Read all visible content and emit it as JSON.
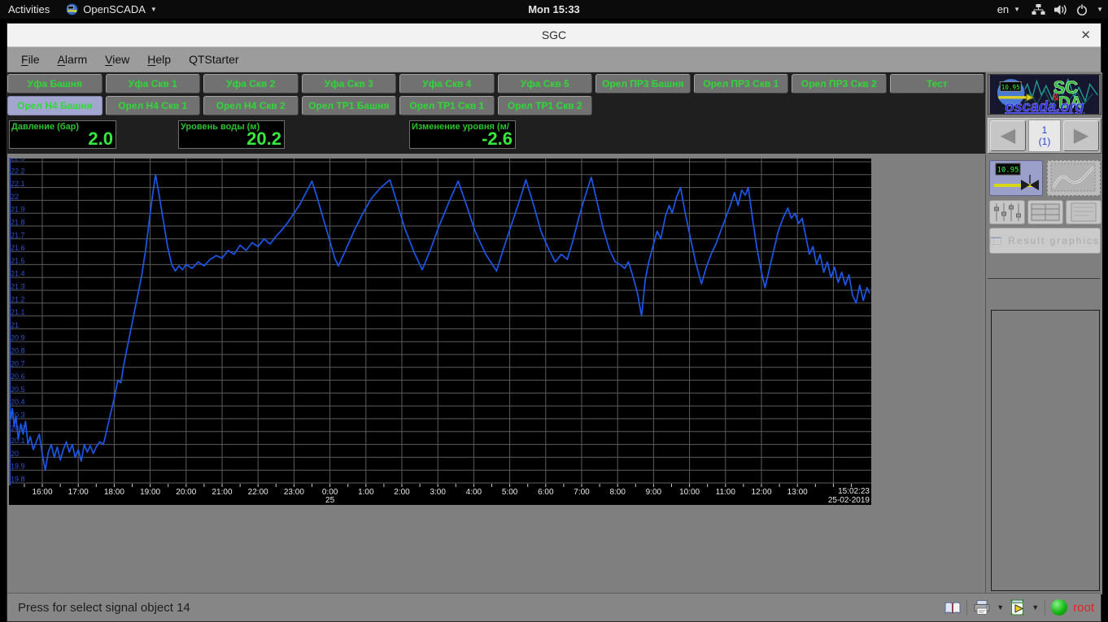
{
  "top_bar": {
    "activities": "Activities",
    "app_name": "OpenSCADA",
    "clock": "Mon 15:33",
    "language": "en"
  },
  "window_title": "SGC",
  "window_close_glyph": "✕",
  "menu": {
    "items": [
      {
        "label": "File",
        "accel": true
      },
      {
        "label": "Alarm",
        "accel": true
      },
      {
        "label": "View",
        "accel": true
      },
      {
        "label": "Help",
        "accel": true
      },
      {
        "label": "QTStarter",
        "accel": false
      }
    ]
  },
  "signal_tabs": {
    "row1": [
      "Уфа Башня",
      "Уфа Скв 1",
      "Уфа Скв 2",
      "Уфа Скв 3",
      "Уфа Скв 4",
      "Уфа Скв 5",
      "Орел ПР3 Башня",
      "Орел ПР3 Скв 1",
      "Орел ПР3 Скв 2",
      "Тест"
    ],
    "row2": [
      "Орел Н4 Башня",
      "Орел Н4 Скв 1",
      "Орел Н4 Скв 2",
      "Орел ТР1 Башня",
      "Орел ТР1 Скв 1",
      "Орел ТР1 Скв 2"
    ],
    "selected": "Орел Н4 Башня"
  },
  "value_displays": [
    {
      "label": "Давление (бар)",
      "value": "2.0"
    },
    {
      "label": "Уровень воды (м)",
      "value": "20.2"
    },
    {
      "label": "Изменение уровня (м/",
      "value": "-2.6"
    }
  ],
  "chart_data": {
    "type": "line",
    "title": "",
    "xlabel": "",
    "ylabel": "",
    "ylim": [
      19.8,
      22.3
    ],
    "y_tick_step": 0.1,
    "y_ticks": [
      "22.3",
      "22.2",
      "22.1",
      "22",
      "21.9",
      "21.8",
      "21.7",
      "21.6",
      "21.5",
      "21.4",
      "21.3",
      "21.2",
      "21.1",
      "21",
      "20.9",
      "20.8",
      "20.7",
      "20.6",
      "20.5",
      "20.4",
      "20.3",
      "20.2",
      "20.1",
      "20",
      "19.9",
      "19.8"
    ],
    "x_ticks": [
      "16:00",
      "17:00",
      "18:00",
      "19:00",
      "20:00",
      "21:00",
      "22:00",
      "23:00",
      "0:00",
      "1:00",
      "2:00",
      "3:00",
      "4:00",
      "5:00",
      "6:00",
      "7:00",
      "8:00",
      "9:00",
      "10:00",
      "11:00",
      "12:00",
      "13:00"
    ],
    "x_grid_extra": [
      "14:00"
    ],
    "x_day_change": {
      "tick": "0:00",
      "label": "25"
    },
    "x_end_label": [
      "15:02:23",
      "25-02-2019"
    ],
    "time_window_hours": 24,
    "grid": true,
    "bg": "#000000",
    "grid_color": "#5c5c5c",
    "axis_color": "#2b52cf",
    "tick_text_color": "#e8e8e8",
    "series": [
      {
        "name": "Уровень воды (м)",
        "color": "#1c57e8",
        "points": [
          [
            "15:04",
            20.44
          ],
          [
            "15:07",
            20.3
          ],
          [
            "15:10",
            20.38
          ],
          [
            "15:13",
            20.24
          ],
          [
            "15:16",
            20.32
          ],
          [
            "15:20",
            20.14
          ],
          [
            "15:24",
            20.26
          ],
          [
            "15:28",
            20.18
          ],
          [
            "15:32",
            20.28
          ],
          [
            "15:36",
            20.1
          ],
          [
            "15:40",
            20.16
          ],
          [
            "15:45",
            20.06
          ],
          [
            "15:50",
            20.12
          ],
          [
            "15:55",
            20.18
          ],
          [
            "16:00",
            20.02
          ],
          [
            "16:05",
            19.9
          ],
          [
            "16:10",
            20.04
          ],
          [
            "16:15",
            20.1
          ],
          [
            "16:20",
            20.0
          ],
          [
            "16:25",
            20.08
          ],
          [
            "16:30",
            19.98
          ],
          [
            "16:35",
            20.06
          ],
          [
            "16:40",
            20.12
          ],
          [
            "16:45",
            20.04
          ],
          [
            "16:50",
            20.1
          ],
          [
            "16:55",
            20.0
          ],
          [
            "17:00",
            20.06
          ],
          [
            "17:05",
            19.97
          ],
          [
            "17:10",
            20.1
          ],
          [
            "17:15",
            20.04
          ],
          [
            "17:20",
            20.09
          ],
          [
            "17:25",
            20.03
          ],
          [
            "17:30",
            20.08
          ],
          [
            "17:36",
            20.12
          ],
          [
            "17:42",
            20.1
          ],
          [
            "17:48",
            20.22
          ],
          [
            "17:54",
            20.34
          ],
          [
            "18:00",
            20.46
          ],
          [
            "18:06",
            20.6
          ],
          [
            "18:11",
            20.58
          ],
          [
            "18:16",
            20.72
          ],
          [
            "18:22",
            20.86
          ],
          [
            "18:28",
            21.0
          ],
          [
            "18:34",
            21.14
          ],
          [
            "18:40",
            21.28
          ],
          [
            "18:46",
            21.42
          ],
          [
            "18:52",
            21.6
          ],
          [
            "18:58",
            21.82
          ],
          [
            "19:04",
            22.04
          ],
          [
            "19:09",
            22.2
          ],
          [
            "19:15",
            22.04
          ],
          [
            "19:22",
            21.84
          ],
          [
            "19:29",
            21.64
          ],
          [
            "19:36",
            21.5
          ],
          [
            "19:42",
            21.45
          ],
          [
            "19:48",
            21.49
          ],
          [
            "19:54",
            21.46
          ],
          [
            "20:00",
            21.5
          ],
          [
            "20:10",
            21.47
          ],
          [
            "20:20",
            21.52
          ],
          [
            "20:30",
            21.49
          ],
          [
            "20:40",
            21.54
          ],
          [
            "20:50",
            21.57
          ],
          [
            "21:00",
            21.55
          ],
          [
            "21:10",
            21.61
          ],
          [
            "21:20",
            21.58
          ],
          [
            "21:30",
            21.65
          ],
          [
            "21:40",
            21.61
          ],
          [
            "21:50",
            21.67
          ],
          [
            "22:00",
            21.64
          ],
          [
            "22:10",
            21.7
          ],
          [
            "22:20",
            21.66
          ],
          [
            "22:30",
            21.72
          ],
          [
            "22:40",
            21.77
          ],
          [
            "22:50",
            21.83
          ],
          [
            "23:00",
            21.9
          ],
          [
            "23:10",
            21.97
          ],
          [
            "23:20",
            22.06
          ],
          [
            "23:30",
            22.15
          ],
          [
            "23:40",
            22.0
          ],
          [
            "23:50",
            21.84
          ],
          [
            "0:00",
            21.68
          ],
          [
            "0:08",
            21.55
          ],
          [
            "0:14",
            21.49
          ],
          [
            "0:25",
            21.6
          ],
          [
            "0:40",
            21.76
          ],
          [
            "0:55",
            21.9
          ],
          [
            "1:10",
            22.02
          ],
          [
            "1:25",
            22.1
          ],
          [
            "1:40",
            22.16
          ],
          [
            "1:52",
            21.98
          ],
          [
            "2:05",
            21.78
          ],
          [
            "2:20",
            21.6
          ],
          [
            "2:34",
            21.46
          ],
          [
            "2:48",
            21.62
          ],
          [
            "3:02",
            21.8
          ],
          [
            "3:18",
            21.98
          ],
          [
            "3:34",
            22.15
          ],
          [
            "3:48",
            21.96
          ],
          [
            "4:02",
            21.76
          ],
          [
            "4:20",
            21.58
          ],
          [
            "4:38",
            21.45
          ],
          [
            "4:50",
            21.63
          ],
          [
            "5:02",
            21.8
          ],
          [
            "5:15",
            21.98
          ],
          [
            "5:27",
            22.16
          ],
          [
            "5:40",
            21.96
          ],
          [
            "5:52",
            21.76
          ],
          [
            "6:05",
            21.62
          ],
          [
            "6:16",
            21.52
          ],
          [
            "6:26",
            21.58
          ],
          [
            "6:36",
            21.54
          ],
          [
            "6:45",
            21.68
          ],
          [
            "6:55",
            21.86
          ],
          [
            "7:05",
            22.02
          ],
          [
            "7:16",
            22.18
          ],
          [
            "7:26",
            21.98
          ],
          [
            "7:36",
            21.78
          ],
          [
            "7:46",
            21.62
          ],
          [
            "7:56",
            21.52
          ],
          [
            "8:04",
            21.5
          ],
          [
            "8:12",
            21.47
          ],
          [
            "8:18",
            21.52
          ],
          [
            "8:26",
            21.4
          ],
          [
            "8:33",
            21.28
          ],
          [
            "8:40",
            21.1
          ],
          [
            "8:46",
            21.38
          ],
          [
            "8:52",
            21.52
          ],
          [
            "9:00",
            21.66
          ],
          [
            "9:06",
            21.76
          ],
          [
            "9:12",
            21.7
          ],
          [
            "9:20",
            21.88
          ],
          [
            "9:26",
            21.96
          ],
          [
            "9:31",
            21.9
          ],
          [
            "9:38",
            22.02
          ],
          [
            "9:45",
            22.1
          ],
          [
            "9:52",
            21.92
          ],
          [
            "10:00",
            21.74
          ],
          [
            "10:10",
            21.52
          ],
          [
            "10:20",
            21.35
          ],
          [
            "10:28",
            21.48
          ],
          [
            "10:36",
            21.58
          ],
          [
            "10:44",
            21.66
          ],
          [
            "10:52",
            21.76
          ],
          [
            "11:00",
            21.86
          ],
          [
            "11:08",
            21.96
          ],
          [
            "11:15",
            22.06
          ],
          [
            "11:21",
            21.96
          ],
          [
            "11:27",
            22.08
          ],
          [
            "11:33",
            22.04
          ],
          [
            "11:38",
            22.1
          ],
          [
            "11:45",
            21.86
          ],
          [
            "11:52",
            21.64
          ],
          [
            "12:00",
            21.44
          ],
          [
            "12:06",
            21.32
          ],
          [
            "12:12",
            21.44
          ],
          [
            "12:20",
            21.6
          ],
          [
            "12:28",
            21.76
          ],
          [
            "12:36",
            21.86
          ],
          [
            "12:44",
            21.94
          ],
          [
            "12:50",
            21.86
          ],
          [
            "12:56",
            21.9
          ],
          [
            "13:02",
            21.82
          ],
          [
            "13:08",
            21.86
          ],
          [
            "13:14",
            21.72
          ],
          [
            "13:20",
            21.58
          ],
          [
            "13:26",
            21.64
          ],
          [
            "13:32",
            21.5
          ],
          [
            "13:38",
            21.58
          ],
          [
            "13:44",
            21.44
          ],
          [
            "13:50",
            21.52
          ],
          [
            "13:56",
            21.4
          ],
          [
            "14:02",
            21.48
          ],
          [
            "14:08",
            21.36
          ],
          [
            "14:14",
            21.44
          ],
          [
            "14:20",
            21.34
          ],
          [
            "14:26",
            21.42
          ],
          [
            "14:32",
            21.26
          ],
          [
            "14:38",
            21.2
          ],
          [
            "14:44",
            21.34
          ],
          [
            "14:50",
            21.22
          ],
          [
            "14:56",
            21.32
          ],
          [
            "15:00",
            21.28
          ]
        ]
      }
    ]
  },
  "sidebar": {
    "logo": {
      "sc": "SC",
      "amp": "&",
      "da": "DA",
      "url": "oscada.org",
      "mini_value": "10.95"
    },
    "pager": {
      "current": "1",
      "total": "(1)"
    },
    "widget_buttons": {
      "analog_display_value": "10.95",
      "result_graphics_label": "Result graphics"
    }
  },
  "status_bar": {
    "message": "Press for select signal object 14",
    "user": "root"
  },
  "colors": {
    "accent_green": "#2fd838",
    "value_green": "#37e93d",
    "trend_blue": "#1c57e8",
    "ytick_blue": "#2b52cf",
    "selected_tab": "#a3a7cf",
    "panel_dark": "#1f1f1f",
    "window_gray": "#7f7f7f"
  }
}
